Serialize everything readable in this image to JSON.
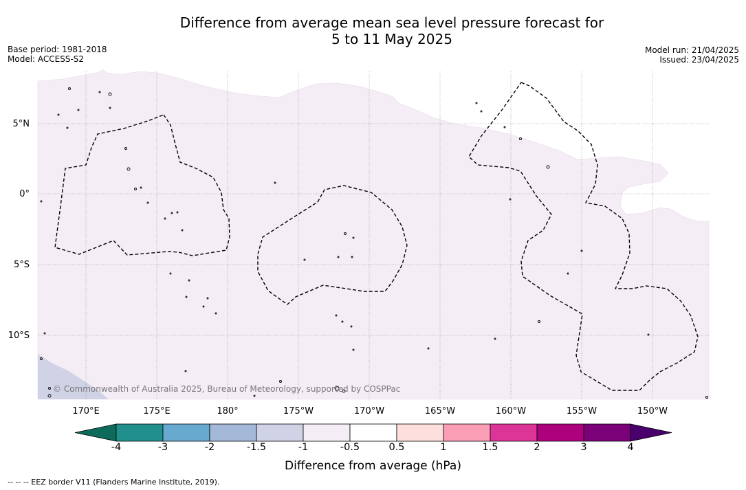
{
  "header": {
    "title_line1": "Difference from average mean sea level pressure forecast for",
    "title_line2": "5 to 11 May 2025",
    "base_period": "Base period: 1981-2018",
    "model": "Model: ACCESS-S2",
    "model_run": "Model run: 21/04/2025",
    "issued": "Issued: 23/04/2025"
  },
  "map": {
    "lat_labels": [
      "5°N",
      "0°",
      "5°S",
      "10°S"
    ],
    "lon_labels": [
      "170°E",
      "175°E",
      "180°",
      "175°W",
      "170°W",
      "165°W",
      "160°W",
      "155°W",
      "150°W"
    ],
    "copyright": "© Commonwealth of Australia 2025, Bureau of Meteorology, supported by COSPPac",
    "colors": {
      "anomaly_minus_1_to_minus_0_5": "#f4edf5",
      "anomaly_minus_1_5_to_minus_1": "#d0d2e6",
      "gridline": "#888888",
      "eez_border": "#000000"
    }
  },
  "colorbar": {
    "title": "Difference from average (hPa)",
    "tick_labels": [
      "-4",
      "-3",
      "-2",
      "-1.5",
      "-1",
      "-0.5",
      "0.5",
      "1",
      "1.5",
      "2",
      "3",
      "4"
    ],
    "colors": [
      "#0c6b5a",
      "#21908d",
      "#67a9cf",
      "#a4b8d8",
      "#d0d2e6",
      "#f4edf5",
      "#ffffff",
      "#fde0dd",
      "#fa9fb5",
      "#dd3497",
      "#ae017e",
      "#7a0177",
      "#49006a"
    ]
  },
  "footnote": "--  --  -- EEZ border V11 (Flanders Marine Institute, 2019)."
}
